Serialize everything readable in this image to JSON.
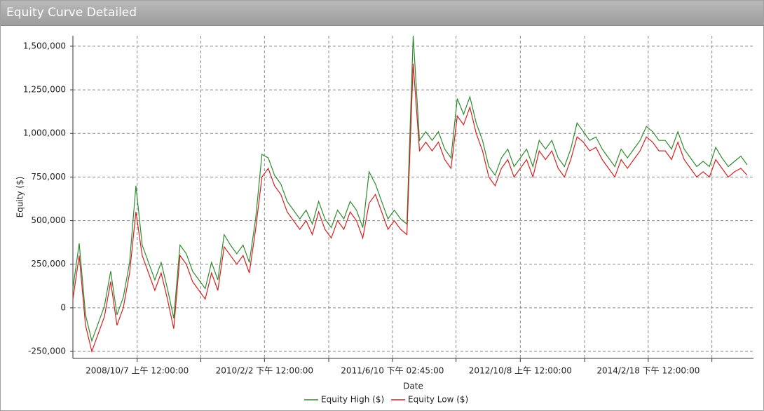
{
  "chart_data": {
    "type": "line",
    "title": "Equity Curve Detailed",
    "x_label": "Date",
    "y_label": "Equity ($)",
    "xlim": [
      0,
      108
    ],
    "xticks": [
      {
        "value": 10.2,
        "label": "2008/10/7 上午 12:00:00"
      },
      {
        "value": 20.3,
        "label": ""
      },
      {
        "value": 30.4,
        "label": "2010/2/2 下午 12:00:00"
      },
      {
        "value": 40.6,
        "label": ""
      },
      {
        "value": 50.7,
        "label": "2011/6/10 下午 02:45:00"
      },
      {
        "value": 60.8,
        "label": ""
      },
      {
        "value": 71,
        "label": "2012/10/8 上午 12:00:00"
      },
      {
        "value": 81.2,
        "label": ""
      },
      {
        "value": 91.3,
        "label": "2014/2/18 下午 12:00:00"
      },
      {
        "value": 101.4,
        "label": ""
      }
    ],
    "ylim": [
      -290000,
      1560000
    ],
    "yticks": [
      {
        "value": -250000,
        "label": "-250,000"
      },
      0,
      {
        "value": 250000,
        "label": "250,000"
      },
      {
        "value": 500000,
        "label": "500,000"
      },
      {
        "value": 750000,
        "label": "750,000"
      },
      {
        "value": 1000000,
        "label": "1,000,000"
      },
      {
        "value": 1250000,
        "label": "1,250,000"
      },
      {
        "value": 1500000,
        "label": "1,500,000"
      }
    ],
    "grid": true,
    "series": [
      {
        "name": "Equity High ($)",
        "color": "#2e8b2e",
        "values": [
          110000,
          370000,
          -40000,
          -190000,
          -90000,
          10000,
          210000,
          -40000,
          60000,
          260000,
          700000,
          360000,
          260000,
          160000,
          260000,
          110000,
          -60000,
          360000,
          310000,
          210000,
          160000,
          110000,
          260000,
          160000,
          420000,
          360000,
          310000,
          360000,
          260000,
          510000,
          880000,
          860000,
          760000,
          710000,
          610000,
          560000,
          510000,
          560000,
          480000,
          610000,
          510000,
          460000,
          560000,
          510000,
          610000,
          560000,
          460000,
          780000,
          710000,
          610000,
          510000,
          560000,
          510000,
          480000,
          1560000,
          960000,
          1010000,
          960000,
          1010000,
          910000,
          860000,
          1200000,
          1110000,
          1210000,
          1060000,
          960000,
          810000,
          760000,
          860000,
          910000,
          810000,
          860000,
          910000,
          810000,
          960000,
          910000,
          960000,
          860000,
          810000,
          910000,
          1060000,
          1010000,
          960000,
          980000,
          910000,
          860000,
          810000,
          910000,
          860000,
          910000,
          960000,
          1040000,
          1010000,
          960000,
          960000,
          910000,
          1010000,
          910000,
          860000,
          810000,
          840000,
          810000,
          920000,
          860000,
          810000,
          840000,
          870000,
          820000
        ]
      },
      {
        "name": "Equity Low ($)",
        "color": "#d42020",
        "values": [
          50000,
          300000,
          -100000,
          -250000,
          -150000,
          -50000,
          150000,
          -100000,
          0,
          200000,
          550000,
          300000,
          200000,
          100000,
          200000,
          50000,
          -120000,
          300000,
          250000,
          150000,
          100000,
          50000,
          200000,
          100000,
          350000,
          300000,
          250000,
          300000,
          200000,
          450000,
          750000,
          800000,
          700000,
          650000,
          550000,
          500000,
          450000,
          500000,
          420000,
          550000,
          450000,
          400000,
          500000,
          450000,
          550000,
          500000,
          400000,
          600000,
          650000,
          550000,
          450000,
          500000,
          450000,
          420000,
          1400000,
          900000,
          950000,
          900000,
          950000,
          850000,
          800000,
          1100000,
          1050000,
          1150000,
          1000000,
          900000,
          750000,
          700000,
          800000,
          850000,
          750000,
          800000,
          850000,
          750000,
          900000,
          850000,
          900000,
          800000,
          750000,
          850000,
          980000,
          950000,
          900000,
          920000,
          850000,
          800000,
          750000,
          850000,
          800000,
          850000,
          900000,
          980000,
          950000,
          900000,
          900000,
          850000,
          950000,
          850000,
          800000,
          750000,
          780000,
          750000,
          850000,
          800000,
          750000,
          780000,
          800000,
          760000
        ]
      }
    ]
  }
}
